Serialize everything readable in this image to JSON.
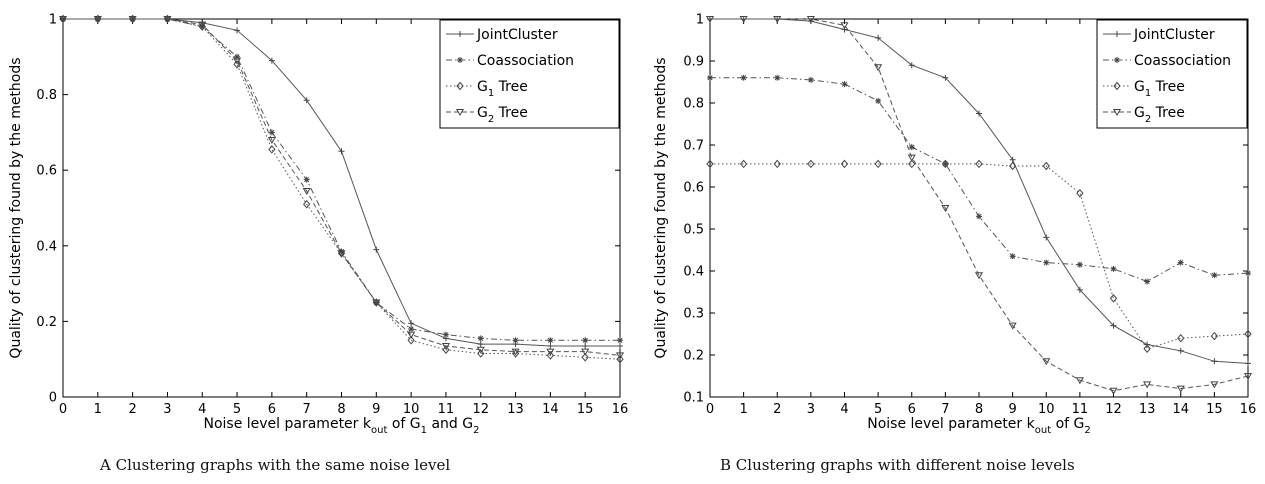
{
  "chart_data": [
    {
      "type": "line",
      "caption": "A Clustering graphs with the same noise level",
      "xlabel": "Noise level parameter k_out of G_1 and G_2",
      "ylabel": "Quality of clustering found by the methods",
      "xlim": [
        0,
        16
      ],
      "ylim": [
        0,
        1
      ],
      "xticks": [
        0,
        1,
        2,
        3,
        4,
        5,
        6,
        7,
        8,
        9,
        10,
        11,
        12,
        13,
        14,
        15,
        16
      ],
      "yticks": [
        0,
        0.2,
        0.4,
        0.6,
        0.8,
        1
      ],
      "ytick_labels": [
        "0",
        "0.2",
        "0.4",
        "0.6",
        "0.8",
        "1"
      ],
      "grid": false,
      "legend_position": "top-right",
      "x": [
        0,
        1,
        2,
        3,
        4,
        5,
        6,
        7,
        8,
        9,
        10,
        11,
        12,
        13,
        14,
        15,
        16
      ],
      "series": [
        {
          "name": "JointCluster",
          "style": "solid",
          "marker": "plus",
          "values": [
            1,
            1,
            1,
            1,
            0.99,
            0.97,
            0.89,
            0.785,
            0.65,
            0.39,
            0.195,
            0.155,
            0.14,
            0.14,
            0.135,
            0.135,
            0.135
          ]
        },
        {
          "name": "Coassociation",
          "style": "dashdot",
          "marker": "star",
          "values": [
            1,
            1,
            1,
            1,
            0.98,
            0.9,
            0.7,
            0.575,
            0.385,
            0.25,
            0.18,
            0.165,
            0.155,
            0.15,
            0.15,
            0.15,
            0.15
          ]
        },
        {
          "name": "G_1 Tree",
          "style": "dotted",
          "marker": "diamond",
          "values": [
            1,
            1,
            1,
            1,
            0.98,
            0.88,
            0.655,
            0.51,
            0.38,
            0.25,
            0.15,
            0.125,
            0.115,
            0.115,
            0.11,
            0.105,
            0.1
          ]
        },
        {
          "name": "G_2 Tree",
          "style": "dashed",
          "marker": "triangle-down",
          "values": [
            1,
            1,
            1,
            1,
            0.985,
            0.89,
            0.68,
            0.545,
            0.38,
            0.25,
            0.165,
            0.135,
            0.125,
            0.12,
            0.12,
            0.12,
            0.11
          ]
        }
      ]
    },
    {
      "type": "line",
      "caption": "B Clustering graphs with different noise levels",
      "xlabel": "Noise level parameter k_out of G_2",
      "ylabel": "Quality of clustering found by the methods",
      "xlim": [
        0,
        16
      ],
      "ylim": [
        0.1,
        1
      ],
      "xticks": [
        0,
        1,
        2,
        3,
        4,
        5,
        6,
        7,
        8,
        9,
        10,
        11,
        12,
        13,
        14,
        15,
        16
      ],
      "yticks": [
        0.1,
        0.2,
        0.3,
        0.4,
        0.5,
        0.6,
        0.7,
        0.8,
        0.9,
        1
      ],
      "ytick_labels": [
        "0.1",
        "0.2",
        "0.3",
        "0.4",
        "0.5",
        "0.6",
        "0.7",
        "0.8",
        "0.9",
        "1"
      ],
      "grid": false,
      "legend_position": "top-right",
      "x": [
        0,
        1,
        2,
        3,
        4,
        5,
        6,
        7,
        8,
        9,
        10,
        11,
        12,
        13,
        14,
        15,
        16
      ],
      "series": [
        {
          "name": "JointCluster",
          "style": "solid",
          "marker": "plus",
          "values": [
            1,
            1,
            1,
            0.995,
            0.975,
            0.955,
            0.89,
            0.86,
            0.775,
            0.665,
            0.48,
            0.355,
            0.27,
            0.225,
            0.21,
            0.185,
            0.18
          ]
        },
        {
          "name": "Coassociation",
          "style": "dashdot",
          "marker": "star",
          "values": [
            0.86,
            0.86,
            0.86,
            0.855,
            0.845,
            0.805,
            0.695,
            0.655,
            0.53,
            0.435,
            0.42,
            0.415,
            0.405,
            0.375,
            0.42,
            0.39,
            0.395
          ]
        },
        {
          "name": "G_1 Tree",
          "style": "dotted",
          "marker": "diamond",
          "values": [
            0.655,
            0.655,
            0.655,
            0.655,
            0.655,
            0.655,
            0.655,
            0.655,
            0.655,
            0.65,
            0.65,
            0.585,
            0.335,
            0.215,
            0.24,
            0.245,
            0.25
          ]
        },
        {
          "name": "G_2 Tree",
          "style": "dashed",
          "marker": "triangle-down",
          "values": [
            1,
            1,
            1,
            1,
            0.985,
            0.885,
            0.67,
            0.55,
            0.39,
            0.27,
            0.185,
            0.14,
            0.115,
            0.13,
            0.12,
            0.13,
            0.15
          ]
        }
      ]
    }
  ]
}
